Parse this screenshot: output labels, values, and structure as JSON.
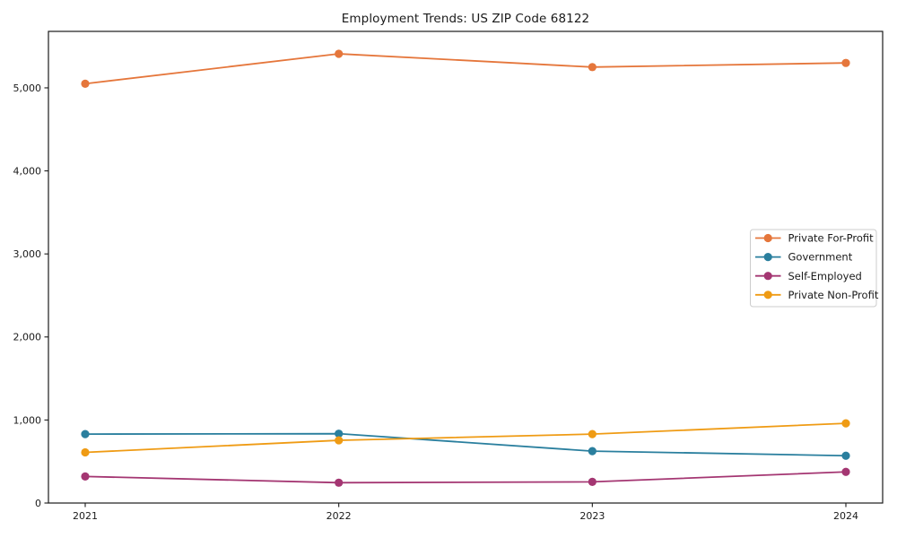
{
  "chart_data": {
    "type": "line",
    "title": "Employment Trends: US ZIP Code 68122",
    "xlabel": "",
    "ylabel": "",
    "x": [
      2021,
      2022,
      2023,
      2024
    ],
    "xtick_labels": [
      "2021",
      "2022",
      "2023",
      "2024"
    ],
    "yticks": [
      0,
      1000,
      2000,
      3000,
      4000,
      5000
    ],
    "ytick_labels": [
      "0",
      "1,000",
      "2,000",
      "3,000",
      "4,000",
      "5,000"
    ],
    "ylim": [
      0,
      5680
    ],
    "grid": false,
    "marker": "circle",
    "legend_position": "center-right",
    "series": [
      {
        "name": "Private For-Profit",
        "color": "#e5763b",
        "values": [
          5050,
          5410,
          5250,
          5300
        ]
      },
      {
        "name": "Government",
        "color": "#2a7f9e",
        "values": [
          830,
          835,
          625,
          570
        ]
      },
      {
        "name": "Self-Employed",
        "color": "#a43672",
        "values": [
          320,
          245,
          255,
          375
        ]
      },
      {
        "name": "Private Non-Profit",
        "color": "#ef9b14",
        "values": [
          610,
          755,
          830,
          960
        ]
      }
    ],
    "frame_color": "#1a1a1a",
    "legend_border_color": "#cccccc",
    "legend_bg_color": "#ffffff"
  }
}
